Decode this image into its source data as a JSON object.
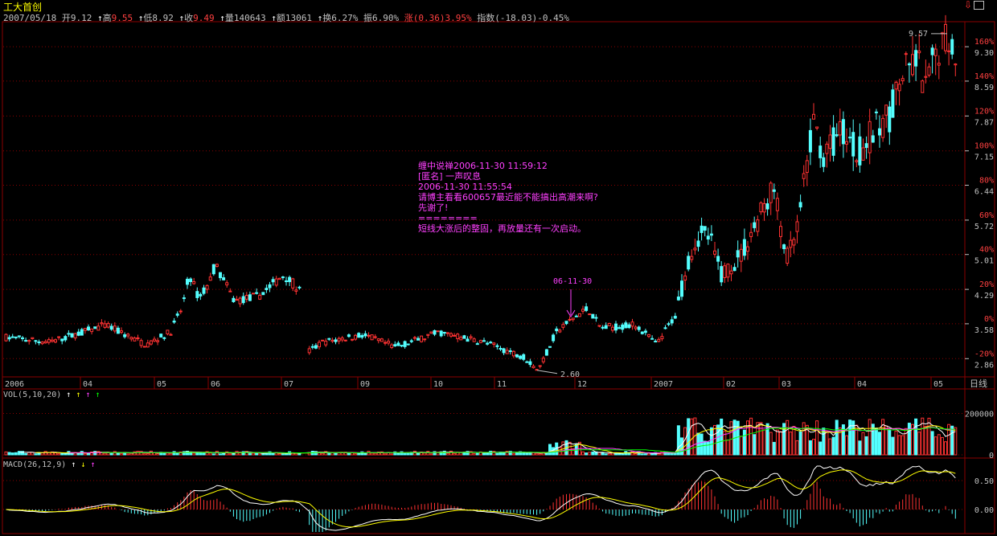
{
  "stock_name": "工大首创",
  "info": {
    "date": "2007/05/18",
    "open_label": "开",
    "open": "9.12",
    "high_label": "高",
    "high": "9.55",
    "low_label": "低",
    "low": "8.92",
    "close_label": "收",
    "close": "9.49",
    "volume_label": "量",
    "volume": "140643",
    "amount_label": "额",
    "amount": "13061",
    "turnover_label": "换",
    "turnover": "6.27%",
    "amplitude_label": "振",
    "amplitude": "6.90%",
    "change_label": "涨",
    "change": "(0.36)3.95%",
    "index_label": "指数",
    "index": "(-18.03)-0.45%"
  },
  "price_axis": {
    "levels": [
      {
        "pct": "160%",
        "price": "9.30"
      },
      {
        "pct": "140%",
        "price": "8.59"
      },
      {
        "pct": "120%",
        "price": "7.87"
      },
      {
        "pct": "100%",
        "price": "7.15"
      },
      {
        "pct": "80%",
        "price": "6.44"
      },
      {
        "pct": "60%",
        "price": "5.72"
      },
      {
        "pct": "40%",
        "price": "5.01"
      },
      {
        "pct": "20%",
        "price": "4.29"
      },
      {
        "pct": "0%",
        "price": "3.58"
      },
      {
        "pct": "-20%",
        "price": "2.86"
      }
    ]
  },
  "markers": {
    "max_label": "9.57",
    "min_label": "2.60",
    "event_date": "06-11-30"
  },
  "time_axis": [
    "2006",
    "04",
    "05",
    "06",
    "07",
    "09",
    "10",
    "11",
    "12",
    "2007",
    "02",
    "03",
    "04",
    "05"
  ],
  "period_label": "日线",
  "note_lines": [
    "缠中说禅2006-11-30 11:59:12",
    "[匿名] 一声叹息",
    "",
    "2006-11-30 11:55:54",
    "请博主看看600657最近能不能搞出高潮来啊?",
    "先谢了!",
    "",
    "========",
    "短线大涨后的整固，再放量还有一次启动。"
  ],
  "vol_panel": {
    "title": "VOL(5,10,20)",
    "ticks": [
      "200000",
      "0"
    ]
  },
  "macd_panel": {
    "title": "MACD(26,12,9)",
    "ticks": [
      "0.50",
      "0.00"
    ]
  },
  "colors": {
    "up": "#ff3232",
    "down": "#54ffff",
    "ma5": "#ffffff",
    "ma10": "#ffff00",
    "ma20": "#ff40ff",
    "ma30": "#00ff00",
    "grid": "#8b0000"
  }
}
